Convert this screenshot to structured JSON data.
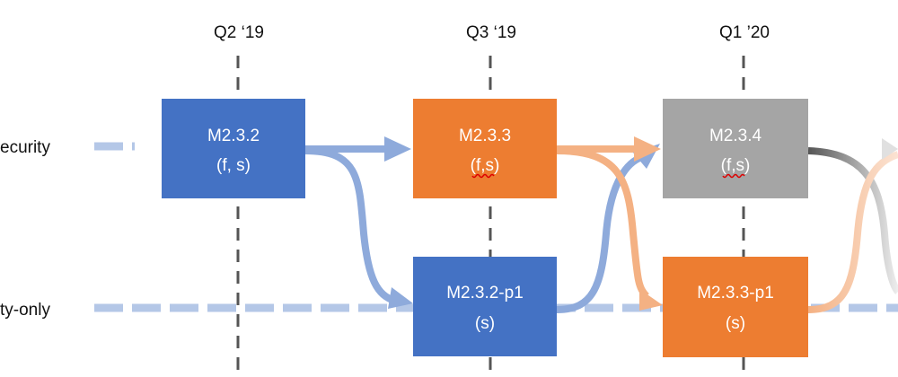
{
  "quarters": [
    "Q2 ‘19",
    "Q3 ‘19",
    "Q1 ’20"
  ],
  "lanes": {
    "top": "ecurity",
    "bottom": "ty-only"
  },
  "boxes": {
    "m232": {
      "title": "M2.3.2",
      "sub": "(f, s)"
    },
    "m233": {
      "title": "M2.3.3",
      "sub": "(f,s)"
    },
    "m234": {
      "title": "M2.3.4",
      "sub": "(f,s)"
    },
    "m232p1": {
      "title": "M2.3.2-p1",
      "sub": "(s)"
    },
    "m233p1": {
      "title": "M2.3.3-p1",
      "sub": "(s)"
    }
  },
  "colors": {
    "blue": "#4472c4",
    "orange": "#ed7d31",
    "gray": "#a5a5a5",
    "lightBlue": "#a9bfe6",
    "lightOrange": "#f4b183",
    "arrowBlue": "#8eaadb"
  }
}
